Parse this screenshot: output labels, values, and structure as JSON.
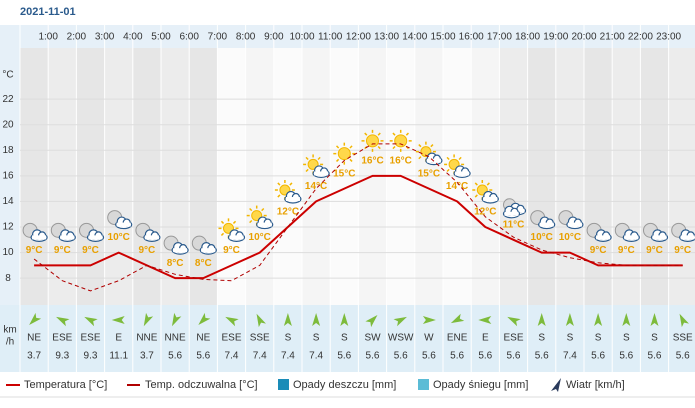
{
  "chart_data": {
    "type": "line",
    "title": "2021-11-01",
    "x_labels": [
      "1:00",
      "2:00",
      "3:00",
      "4:00",
      "5:00",
      "6:00",
      "7:00",
      "8:00",
      "9:00",
      "10:00",
      "11:00",
      "12:00",
      "13:00",
      "14:00",
      "15:00",
      "16:00",
      "17:00",
      "18:00",
      "19:00",
      "20:00",
      "21:00",
      "22:00",
      "23:00"
    ],
    "y_unit": "°C",
    "ylim": [
      5.9,
      26
    ],
    "yticks": [
      8,
      10,
      12,
      14,
      16,
      18,
      20,
      22
    ],
    "grid": true,
    "series": [
      {
        "name": "Temperatura [°C]",
        "color": "#cc0000",
        "dashed": false,
        "values": [
          9,
          9,
          9,
          10,
          9,
          8,
          8,
          9,
          10,
          12,
          14,
          15,
          16,
          16,
          15,
          14,
          12,
          11,
          10,
          10,
          9,
          9,
          9,
          9
        ],
        "value_labels": [
          "9°C",
          "9°C",
          "9°C",
          "10°C",
          "9°C",
          "8°C",
          "8°C",
          "9°C",
          "10°C",
          "12°C",
          "14°C",
          "15°C",
          "16°C",
          "16°C",
          "15°C",
          "14°C",
          "12°C",
          "11°C",
          "10°C",
          "10°C",
          "9°C",
          "9°C",
          "9°C",
          "9°C"
        ]
      },
      {
        "name": "Temp. odczuwalna [°C]",
        "color": "#b00000",
        "dashed": true,
        "values": [
          9.5,
          7.8,
          7.0,
          7.8,
          9.0,
          8.3,
          7.9,
          7.8,
          9.0,
          12.0,
          15.0,
          17.2,
          18.5,
          18.5,
          17.5,
          15.5,
          12.8,
          11.2,
          10.2,
          9.6,
          9.2,
          9.0,
          9.0,
          9.0
        ]
      }
    ],
    "legend_extra": [
      {
        "name": "Opady deszczu [mm]",
        "color": "#1a8cb8"
      },
      {
        "name": "Opady śniegu [mm]",
        "color": "#5bbcd6"
      },
      {
        "name": "Wiatr [km/h]",
        "color": "#2a3b5c"
      }
    ],
    "wind": {
      "unit": [
        "km",
        "/h"
      ],
      "directions": [
        "NE",
        "ESE",
        "ESE",
        "E",
        "NNE",
        "NNE",
        "NE",
        "ESE",
        "SSE",
        "S",
        "S",
        "S",
        "SW",
        "WSW",
        "W",
        "ENE",
        "E",
        "ESE",
        "S",
        "S",
        "S",
        "S",
        "S",
        "SSE"
      ],
      "speeds": [
        3.7,
        9.3,
        9.3,
        11.1,
        3.7,
        5.6,
        5.6,
        7.4,
        7.4,
        7.4,
        7.4,
        5.6,
        5.6,
        5.6,
        5.6,
        5.6,
        5.6,
        5.6,
        5.6,
        7.4,
        5.6,
        5.6,
        5.6,
        5.6
      ]
    }
  }
}
